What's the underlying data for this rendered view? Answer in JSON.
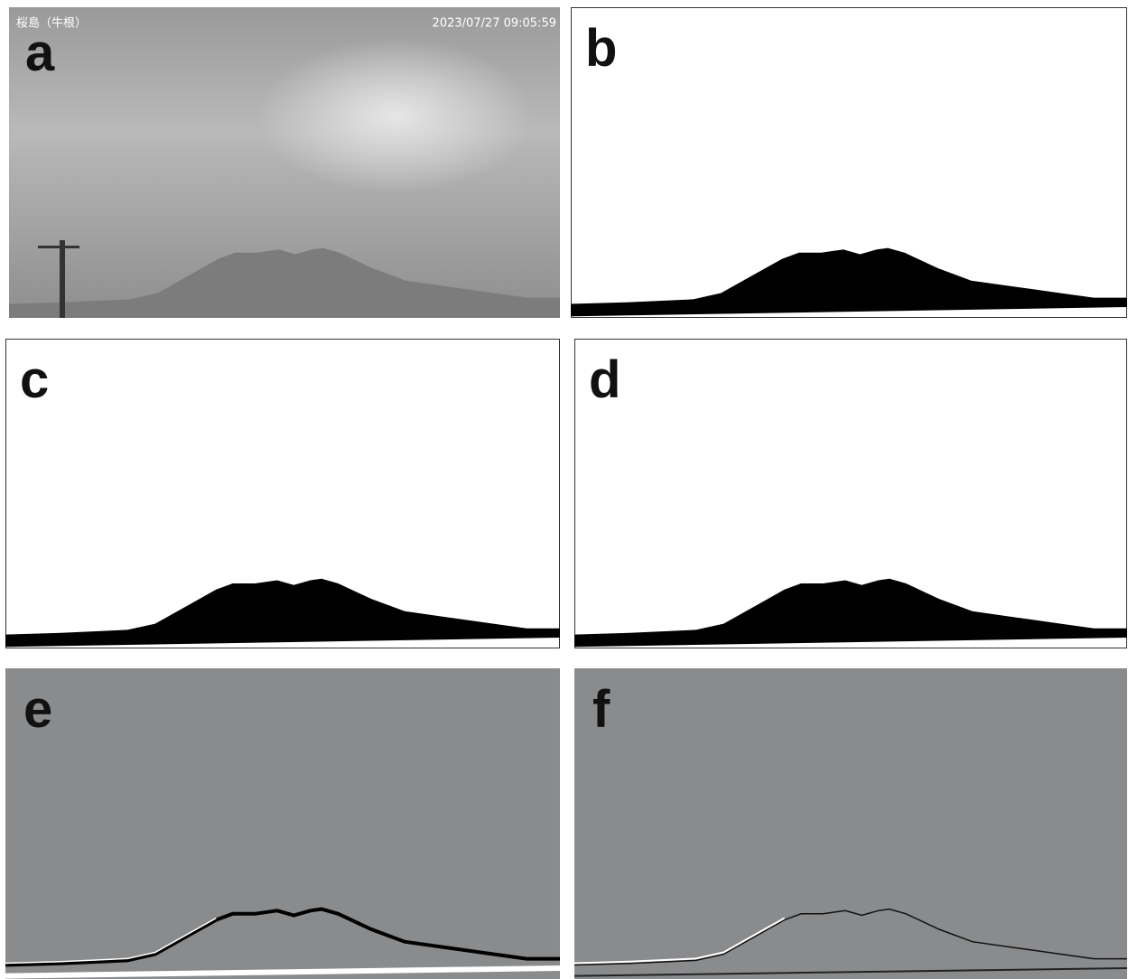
{
  "panels": [
    {
      "label": "a",
      "caption_left": "桜島（牛根）",
      "caption_right": "2023/07/27 09:05:59"
    },
    {
      "label": "b"
    },
    {
      "label": "c"
    },
    {
      "label": "d"
    },
    {
      "label": "e"
    },
    {
      "label": "f"
    }
  ]
}
